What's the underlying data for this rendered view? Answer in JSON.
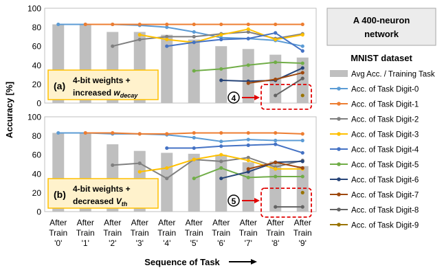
{
  "figure": {
    "ylabel": "Accuracy [%]",
    "xlabel": "Sequence of Task",
    "title_line1": "A 400-neuron",
    "title_line2": "network",
    "dataset_label": "MNIST dataset",
    "x_tick_lines": [
      [
        "After",
        "Train",
        "'0'"
      ],
      [
        "After",
        "Train",
        "'1'"
      ],
      [
        "After",
        "Train",
        "'2'"
      ],
      [
        "After",
        "Train",
        "'3'"
      ],
      [
        "After",
        "Train",
        "'4'"
      ],
      [
        "After",
        "Train",
        "'5'"
      ],
      [
        "After",
        "Train",
        "'6'"
      ],
      [
        "After",
        "Train",
        "'7'"
      ],
      [
        "After",
        "Train",
        "'8'"
      ],
      [
        "After",
        "Train",
        "'9'"
      ]
    ],
    "y_ticks": [
      "0",
      "20",
      "40",
      "60",
      "80",
      "100"
    ],
    "legend": [
      {
        "label": "Avg Acc. / Training Task",
        "color": "#bfbfbf",
        "kind": "bar"
      },
      {
        "label": "Acc. of Task Digit-0",
        "color": "#5b9bd5",
        "kind": "line"
      },
      {
        "label": "Acc. of Task Digit-1",
        "color": "#ed7d31",
        "kind": "line"
      },
      {
        "label": "Acc. of Task Digit-2",
        "color": "#7f7f7f",
        "kind": "line"
      },
      {
        "label": "Acc. of Task Digit-3",
        "color": "#ffc000",
        "kind": "line"
      },
      {
        "label": "Acc. of Task Digit-4",
        "color": "#4472c4",
        "kind": "line"
      },
      {
        "label": "Acc. of Task Digit-5",
        "color": "#70ad47",
        "kind": "line"
      },
      {
        "label": "Acc. of Task Digit-6",
        "color": "#264478",
        "kind": "line"
      },
      {
        "label": "Acc. of Task Digit-7",
        "color": "#9e480e",
        "kind": "line"
      },
      {
        "label": "Acc. of Task Digit-8",
        "color": "#636363",
        "kind": "line"
      },
      {
        "label": "Acc. of Task Digit-9",
        "color": "#997300",
        "kind": "line"
      }
    ]
  },
  "chart_data": [
    {
      "type": "bar+line",
      "panel": "a",
      "annotation_prefix": "(a)",
      "annotation_line1": "4-bit weights +",
      "annotation_line2_text": "increased ",
      "annotation_symbol": "w",
      "annotation_subscript": "decay",
      "marker": "4",
      "ylim": [
        0,
        100
      ],
      "bars": [
        83,
        83,
        75,
        75,
        72,
        67,
        60,
        57,
        51,
        48
      ],
      "series": [
        {
          "name": "Acc. of Task Digit-0",
          "start": 0,
          "values": [
            83,
            83,
            83,
            82,
            80,
            75,
            69,
            68,
            66,
            60
          ]
        },
        {
          "name": "Acc. of Task Digit-1",
          "start": 1,
          "values": [
            83,
            83,
            83,
            83,
            83,
            83,
            83,
            83,
            83
          ]
        },
        {
          "name": "Acc. of Task Digit-2",
          "start": 2,
          "values": [
            60,
            67,
            70,
            70,
            73,
            75,
            68,
            73
          ]
        },
        {
          "name": "Acc. of Task Digit-3",
          "start": 3,
          "values": [
            72,
            67,
            64,
            72,
            78,
            67,
            72
          ]
        },
        {
          "name": "Acc. of Task Digit-4",
          "start": 4,
          "values": [
            60,
            64,
            67,
            68,
            74,
            55
          ]
        },
        {
          "name": "Acc. of Task Digit-5",
          "start": 5,
          "values": [
            34,
            36,
            40,
            43,
            42
          ]
        },
        {
          "name": "Acc. of Task Digit-6",
          "start": 6,
          "values": [
            24,
            23,
            24,
            37
          ]
        },
        {
          "name": "Acc. of Task Digit-7",
          "start": 7,
          "values": [
            21,
            25,
            32
          ]
        },
        {
          "name": "Acc. of Task Digit-8",
          "start": 8,
          "values": [
            8,
            26
          ]
        },
        {
          "name": "Acc. of Task Digit-9",
          "start": 9,
          "values": [
            8
          ]
        }
      ]
    },
    {
      "type": "bar+line",
      "panel": "b",
      "annotation_prefix": "(b)",
      "annotation_line1": "4-bit weights +",
      "annotation_line2_text": "decreased ",
      "annotation_symbol": "V",
      "annotation_subscript": "th",
      "marker": "5",
      "ylim": [
        0,
        100
      ],
      "bars": [
        83,
        83,
        71,
        64,
        62,
        61,
        60,
        52,
        53,
        48
      ],
      "series": [
        {
          "name": "Acc. of Task Digit-0",
          "start": 0,
          "values": [
            83,
            83,
            82,
            82,
            81,
            78,
            74,
            76,
            75,
            75
          ]
        },
        {
          "name": "Acc. of Task Digit-1",
          "start": 1,
          "values": [
            83,
            83,
            82,
            82,
            83,
            83,
            83,
            83,
            82
          ]
        },
        {
          "name": "Acc. of Task Digit-2",
          "start": 2,
          "values": [
            49,
            51,
            35,
            55,
            53,
            57,
            47,
            54
          ]
        },
        {
          "name": "Acc. of Task Digit-3",
          "start": 3,
          "values": [
            42,
            46,
            55,
            60,
            54,
            45,
            45
          ]
        },
        {
          "name": "Acc. of Task Digit-4",
          "start": 4,
          "values": [
            67,
            67,
            69,
            70,
            71,
            62
          ]
        },
        {
          "name": "Acc. of Task Digit-5",
          "start": 5,
          "values": [
            35,
            46,
            36,
            37,
            37
          ]
        },
        {
          "name": "Acc. of Task Digit-6",
          "start": 6,
          "values": [
            35,
            42,
            52,
            53
          ]
        },
        {
          "name": "Acc. of Task Digit-7",
          "start": 7,
          "values": [
            45,
            52,
            46
          ]
        },
        {
          "name": "Acc. of Task Digit-8",
          "start": 8,
          "values": [
            5,
            5
          ]
        },
        {
          "name": "Acc. of Task Digit-9",
          "start": 9,
          "values": [
            20
          ]
        }
      ]
    }
  ]
}
